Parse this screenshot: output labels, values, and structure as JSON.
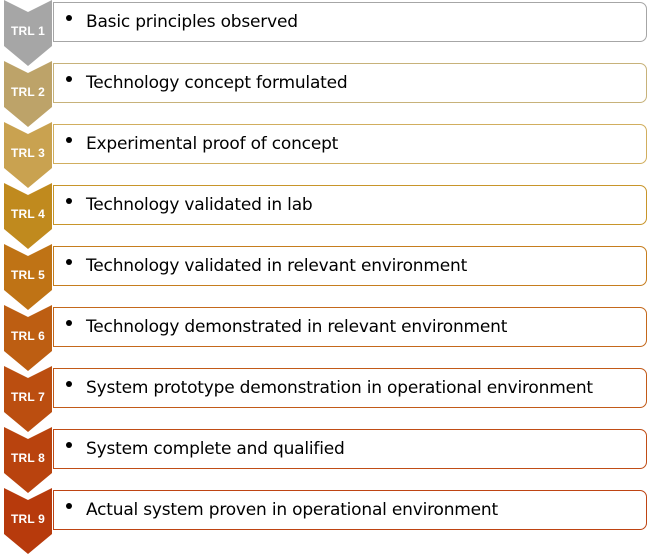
{
  "levels": [
    {
      "label": "TRL 1",
      "text": "Basic principles observed",
      "chevron_color": "#a6a6a6",
      "border_color": "#a6a6a6"
    },
    {
      "label": "TRL 2",
      "text": "Technology concept formulated",
      "chevron_color": "#bda369",
      "border_color": "#c7b27a"
    },
    {
      "label": "TRL 3",
      "text": "Experimental proof of concept",
      "chevron_color": "#c9a250",
      "border_color": "#d1ae5e"
    },
    {
      "label": "TRL 4",
      "text": "Technology validated in lab",
      "chevron_color": "#c08a1e",
      "border_color": "#c8952a"
    },
    {
      "label": "TRL 5",
      "text": "Technology validated in relevant environment",
      "chevron_color": "#bf7315",
      "border_color": "#c67d1e"
    },
    {
      "label": "TRL 6",
      "text": "Technology demonstrated in relevant environment",
      "chevron_color": "#bd5e12",
      "border_color": "#c4681b"
    },
    {
      "label": "TRL 7",
      "text": "System prototype demonstration in operational environment",
      "chevron_color": "#bb4e10",
      "border_color": "#c25a18"
    },
    {
      "label": "TRL 8",
      "text": "System complete and qualified",
      "chevron_color": "#b9430e",
      "border_color": "#c04d16"
    },
    {
      "label": "TRL 9",
      "text": "Actual system proven in operational environment",
      "chevron_color": "#b73a0c",
      "border_color": "#be4413"
    }
  ]
}
